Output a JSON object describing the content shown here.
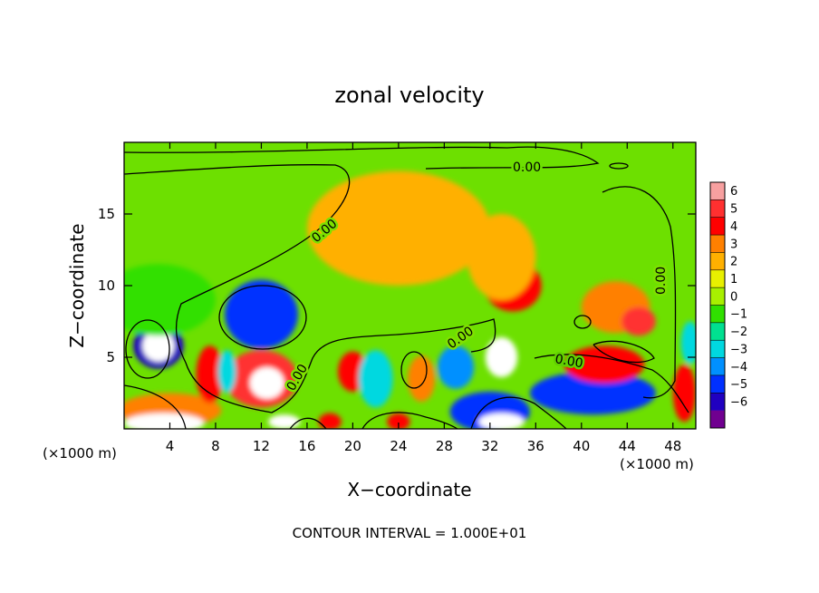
{
  "chart_data": {
    "type": "heatmap",
    "title": "zonal velocity",
    "xlabel": "X−coordinate",
    "ylabel": "Z−coordinate",
    "x_unit_label": "(×1000 m)",
    "x_unit_label_right": "(×1000 m)",
    "xlim": [
      0,
      50
    ],
    "ylim": [
      0,
      20
    ],
    "x_ticks": [
      4,
      8,
      12,
      16,
      20,
      24,
      28,
      32,
      36,
      40,
      44,
      48
    ],
    "y_ticks": [
      5,
      10,
      15
    ],
    "footer": "CONTOUR INTERVAL = 1.000E+01",
    "contour_labels": [
      "0.00",
      "0.00",
      "0.00",
      "0.00",
      "0.00",
      "0.00"
    ],
    "colorbar": {
      "levels": [
        6,
        5,
        4,
        3,
        2,
        1,
        0,
        -1,
        -2,
        -3,
        -4,
        -5,
        -6
      ],
      "labels": [
        "6",
        "5",
        "4",
        "3",
        "2",
        "1",
        "0",
        "−1",
        "−2",
        "−3",
        "−4",
        "−5",
        "−6"
      ],
      "colors": [
        "#f7a0a0",
        "#ff3030",
        "#ff0000",
        "#ff8000",
        "#ffb000",
        "#e8f000",
        "#a8f000",
        "#30e000",
        "#00e090",
        "#00d8e0",
        "#0090ff",
        "#0030ff",
        "#2000c0",
        "#700090"
      ]
    },
    "features": [
      {
        "x": 3,
        "z": 5.8,
        "value": -6,
        "rx": 2.2,
        "rz": 1.6
      },
      {
        "x": 3,
        "z": 5.8,
        "value": 6.5,
        "rx": 1.4,
        "rz": 1.1
      },
      {
        "x": 4,
        "z": 1.3,
        "value": 3,
        "rx": 4.5,
        "rz": 1.2
      },
      {
        "x": 3.5,
        "z": 0.4,
        "value": 6.5,
        "rx": 3.5,
        "rz": 0.7
      },
      {
        "x": 12,
        "z": 8.0,
        "value": -5,
        "rx": 3.2,
        "rz": 2.4
      },
      {
        "x": 12,
        "z": 3.5,
        "value": 4.5,
        "rx": 3.2,
        "rz": 2.0
      },
      {
        "x": 12.5,
        "z": 3.2,
        "value": 6.5,
        "rx": 1.5,
        "rz": 1.1
      },
      {
        "x": 7.5,
        "z": 3.8,
        "value": 4,
        "rx": 1.2,
        "rz": 2.0
      },
      {
        "x": 9,
        "z": 4.0,
        "value": -3,
        "rx": 0.8,
        "rz": 1.5
      },
      {
        "x": 20,
        "z": 4.0,
        "value": 3.5,
        "rx": 1.3,
        "rz": 1.4
      },
      {
        "x": 22,
        "z": 3.5,
        "value": -3,
        "rx": 1.5,
        "rz": 2.0
      },
      {
        "x": 26,
        "z": 3.5,
        "value": 3,
        "rx": 1.2,
        "rz": 1.6
      },
      {
        "x": 29,
        "z": 4.3,
        "value": -4.5,
        "rx": 1.6,
        "rz": 1.5
      },
      {
        "x": 33,
        "z": 5.0,
        "value": 6.5,
        "rx": 1.4,
        "rz": 1.4
      },
      {
        "x": 32,
        "z": 1.2,
        "value": -5.5,
        "rx": 3.5,
        "rz": 1.4
      },
      {
        "x": 33,
        "z": 0.5,
        "value": 6.5,
        "rx": 2.0,
        "rz": 0.6
      },
      {
        "x": 41,
        "z": 2.5,
        "value": -5,
        "rx": 5.5,
        "rz": 1.5
      },
      {
        "x": 42,
        "z": 4.5,
        "value": 4,
        "rx": 3.5,
        "rz": 1.3
      },
      {
        "x": 34,
        "z": 10.0,
        "value": 3.5,
        "rx": 2.5,
        "rz": 1.8
      },
      {
        "x": 43,
        "z": 8.5,
        "value": 3,
        "rx": 3.0,
        "rz": 1.8
      },
      {
        "x": 45,
        "z": 7.5,
        "value": 4.5,
        "rx": 1.5,
        "rz": 1.0
      },
      {
        "x": 18,
        "z": 0.5,
        "value": 4,
        "rx": 1.0,
        "rz": 0.6
      },
      {
        "x": 24,
        "z": 0.5,
        "value": 4,
        "rx": 1.0,
        "rz": 0.6
      },
      {
        "x": 14,
        "z": 0.5,
        "value": 6.5,
        "rx": 1.4,
        "rz": 0.5
      },
      {
        "x": 49,
        "z": 2.5,
        "value": 4,
        "rx": 1.0,
        "rz": 2.0
      },
      {
        "x": 49.5,
        "z": 6.0,
        "value": -3,
        "rx": 0.8,
        "rz": 1.5
      },
      {
        "x": 3,
        "z": 9.0,
        "value": -1.8,
        "rx": 5.0,
        "rz": 2.5
      },
      {
        "x": 24,
        "z": 14.0,
        "value": 1.5,
        "rx": 8.0,
        "rz": 4.0
      },
      {
        "x": 33,
        "z": 12.0,
        "value": 2.0,
        "rx": 3.0,
        "rz": 3.0
      }
    ]
  }
}
